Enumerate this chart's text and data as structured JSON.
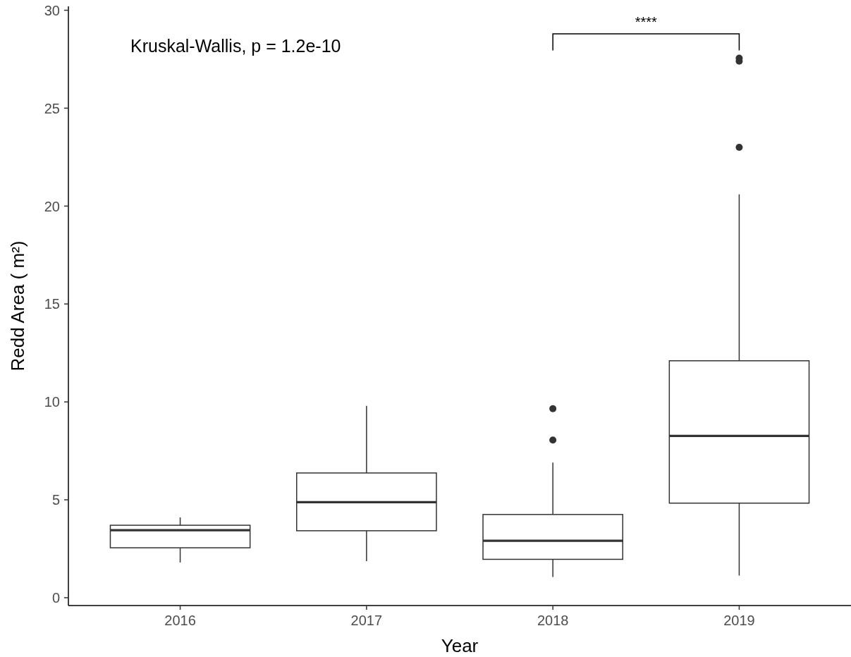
{
  "chart_data": {
    "type": "box",
    "xlabel": "Year",
    "ylabel": "Redd Area ( m²)",
    "categories": [
      "2016",
      "2017",
      "2018",
      "2019"
    ],
    "color": "#333333",
    "boxes": [
      {
        "low": 1.8,
        "q1": 2.55,
        "median": 3.45,
        "q3": 3.7,
        "high": 4.1
      },
      {
        "low": 1.87,
        "q1": 3.42,
        "median": 4.88,
        "q3": 6.37,
        "high": 9.8
      },
      {
        "low": 1.06,
        "q1": 1.96,
        "median": 2.91,
        "q3": 4.25,
        "high": 6.9,
        "outliers": [
          8.05,
          9.65
        ]
      },
      {
        "low": 1.13,
        "q1": 4.83,
        "median": 8.26,
        "q3": 12.1,
        "high": 20.6,
        "outliers": [
          23.0,
          27.4,
          27.55
        ]
      }
    ],
    "ylim": [
      -0.4,
      30.2
    ],
    "yticks": [
      0,
      5,
      10,
      15,
      20,
      25,
      30
    ],
    "annotations": [
      "Kruskal-Wallis, p = 1.2e-10",
      "****"
    ]
  }
}
